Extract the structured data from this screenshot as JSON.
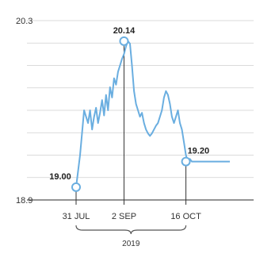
{
  "chart_data": {
    "type": "line",
    "title": "",
    "ylim": [
      18.9,
      20.3
    ],
    "y_tick_labels": [
      "20.3",
      "18.9"
    ],
    "x_tick_labels": [
      "31 JUL",
      "2 SEP",
      "16 OCT"
    ],
    "year_label": "2019",
    "grid": true,
    "line_color": "#6aaee0",
    "series": [
      {
        "x": [
          0,
          2,
          4,
          5,
          6,
          7,
          8,
          9,
          10,
          11,
          12,
          13,
          14,
          15,
          16,
          17,
          18,
          19,
          20,
          21,
          22,
          23,
          24,
          25,
          26,
          27,
          28,
          29,
          30,
          31,
          32,
          33,
          34,
          35,
          36,
          37,
          38,
          39,
          40,
          41,
          42,
          43,
          44,
          45,
          46,
          47,
          48,
          49,
          50,
          51,
          52,
          53,
          54,
          55,
          56,
          57,
          58,
          59,
          60,
          61,
          62,
          63,
          64,
          65,
          66,
          67,
          68,
          69,
          70,
          71,
          72,
          73,
          74,
          75,
          76,
          77
        ],
        "y": [
          19.0,
          19.25,
          19.6,
          19.55,
          19.5,
          19.6,
          19.45,
          19.55,
          19.62,
          19.5,
          19.58,
          19.68,
          19.56,
          19.72,
          19.6,
          19.78,
          19.7,
          19.85,
          19.8,
          19.9,
          19.95,
          20.0,
          20.04,
          20.1,
          20.14,
          20.12,
          19.95,
          19.75,
          19.65,
          19.6,
          19.55,
          19.58,
          19.5,
          19.45,
          19.42,
          19.4,
          19.42,
          19.45,
          19.48,
          19.5,
          19.55,
          19.6,
          19.7,
          19.75,
          19.72,
          19.65,
          19.55,
          19.5,
          19.55,
          19.6,
          19.5,
          19.45,
          19.35,
          19.25,
          19.2,
          19.22,
          19.2,
          19.2,
          19.2,
          19.2,
          19.2,
          19.2,
          19.2,
          19.2,
          19.2,
          19.2,
          19.2,
          19.2,
          19.2,
          19.2,
          19.2,
          19.2,
          19.2,
          19.2,
          19.2,
          19.2
        ]
      }
    ],
    "annotations": [
      {
        "label": "19.00",
        "x": 0,
        "y": 19.0
      },
      {
        "label": "20.14",
        "x": 24,
        "y": 20.14
      },
      {
        "label": "19.20",
        "x": 55,
        "y": 19.2
      }
    ]
  }
}
